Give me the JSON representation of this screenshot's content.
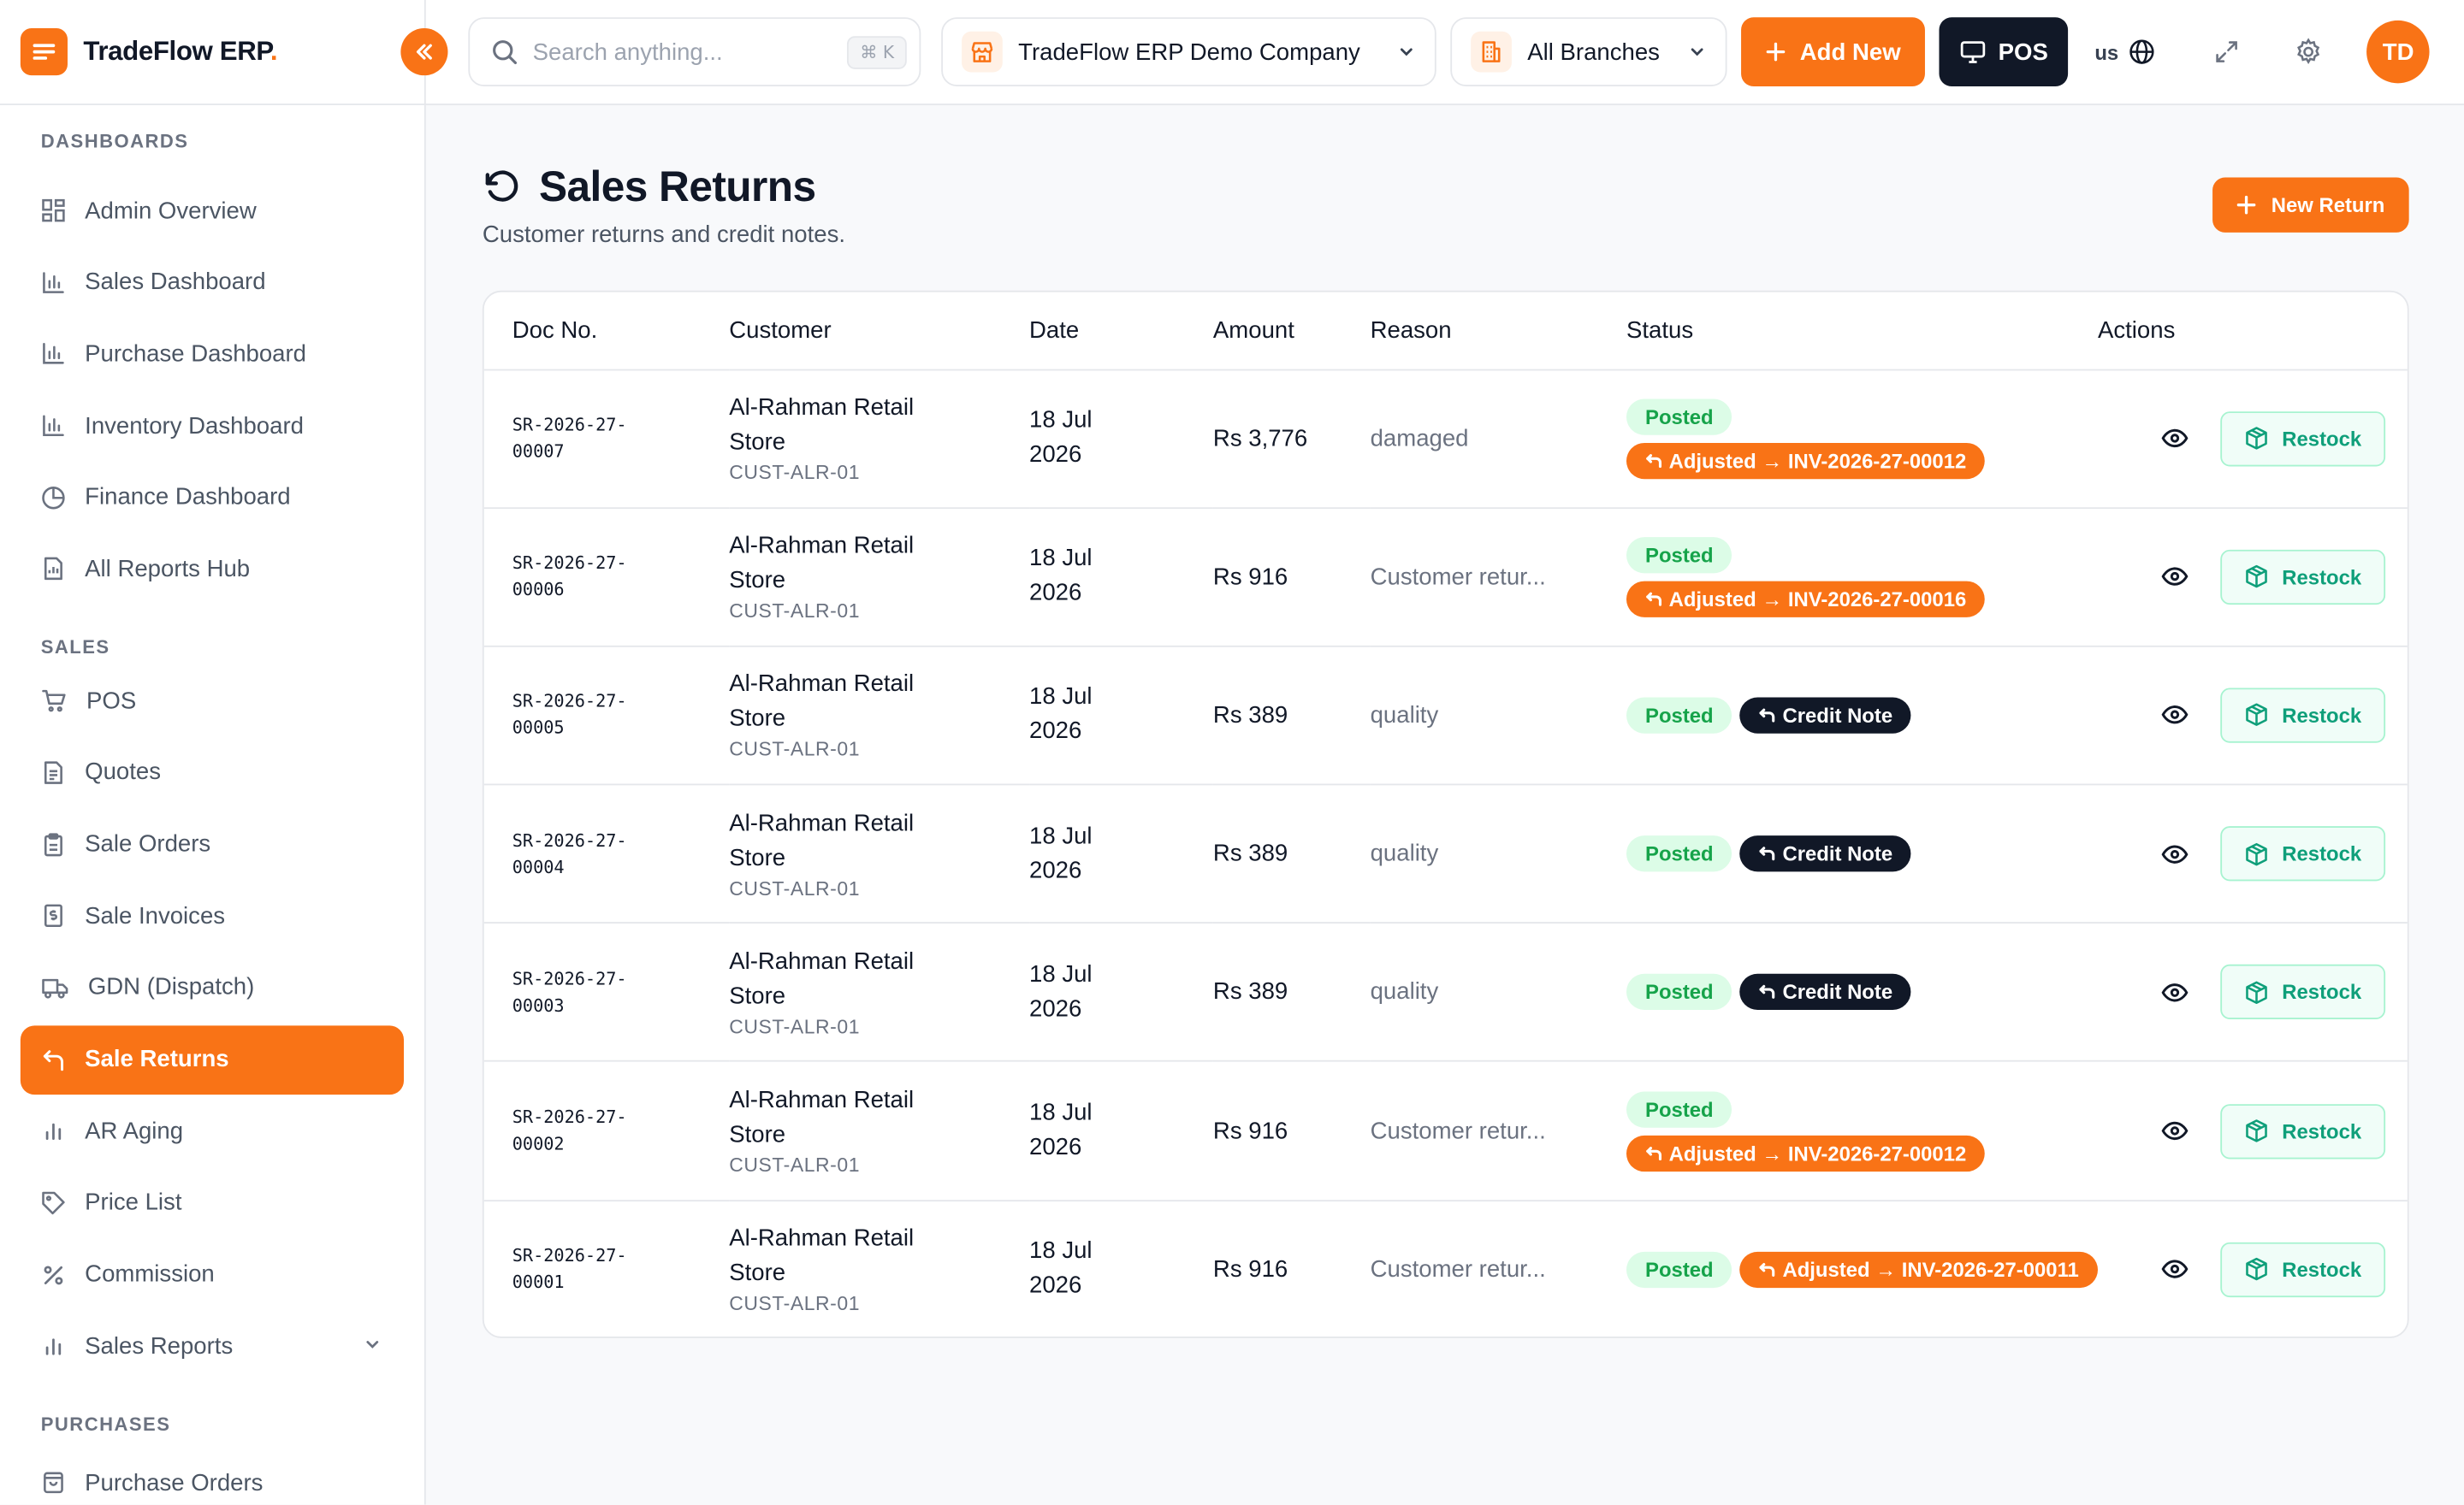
{
  "brand": {
    "name": "TradeFlow ERP",
    "dot": "."
  },
  "header": {
    "search_placeholder": "Search anything...",
    "search_shortcut": "⌘ K",
    "company": "TradeFlow ERP Demo Company",
    "branch": "All Branches",
    "add_new_label": "Add New",
    "pos_label": "POS",
    "language": "us",
    "avatar_initials": "TD"
  },
  "sidebar": {
    "sections": [
      {
        "title": "DASHBOARDS",
        "items": [
          {
            "label": "Admin Overview",
            "icon": "grid-icon"
          },
          {
            "label": "Sales Dashboard",
            "icon": "bar-chart-icon"
          },
          {
            "label": "Purchase Dashboard",
            "icon": "bar-chart-icon"
          },
          {
            "label": "Inventory Dashboard",
            "icon": "bar-chart-icon"
          },
          {
            "label": "Finance Dashboard",
            "icon": "pie-chart-icon"
          },
          {
            "label": "All Reports Hub",
            "icon": "report-icon"
          }
        ]
      },
      {
        "title": "SALES",
        "items": [
          {
            "label": "POS",
            "icon": "cart-icon"
          },
          {
            "label": "Quotes",
            "icon": "document-icon"
          },
          {
            "label": "Sale Orders",
            "icon": "clipboard-icon"
          },
          {
            "label": "Sale Invoices",
            "icon": "invoice-icon"
          },
          {
            "label": "GDN (Dispatch)",
            "icon": "truck-icon"
          },
          {
            "label": "Sale Returns",
            "icon": "return-icon",
            "active": true
          },
          {
            "label": "AR Aging",
            "icon": "bar-chart-icon"
          },
          {
            "label": "Price List",
            "icon": "tag-icon"
          },
          {
            "label": "Commission",
            "icon": "percent-icon"
          },
          {
            "label": "Sales Reports",
            "icon": "bar-chart-icon",
            "expandable": true
          }
        ]
      },
      {
        "title": "PURCHASES",
        "items": [
          {
            "label": "Purchase Orders",
            "icon": "bag-icon"
          }
        ]
      }
    ]
  },
  "page": {
    "title": "Sales Returns",
    "subtitle": "Customer returns and credit notes.",
    "new_return_label": "New Return"
  },
  "table": {
    "columns": [
      "Doc No.",
      "Customer",
      "Date",
      "Amount",
      "Reason",
      "Status",
      "Actions"
    ],
    "rows": [
      {
        "doc_no": "SR-2026-27-00007",
        "customer": "Al-Rahman Retail Store",
        "customer_code": "CUST-ALR-01",
        "date": "18 Jul 2026",
        "amount": "Rs 3,776",
        "reason": "damaged",
        "status": "Posted",
        "tag_type": "adjusted",
        "tag": "Adjusted → INV-2026-27-00012"
      },
      {
        "doc_no": "SR-2026-27-00006",
        "customer": "Al-Rahman Retail Store",
        "customer_code": "CUST-ALR-01",
        "date": "18 Jul 2026",
        "amount": "Rs 916",
        "reason": "Customer retur...",
        "status": "Posted",
        "tag_type": "adjusted",
        "tag": "Adjusted → INV-2026-27-00016"
      },
      {
        "doc_no": "SR-2026-27-00005",
        "customer": "Al-Rahman Retail Store",
        "customer_code": "CUST-ALR-01",
        "date": "18 Jul 2026",
        "amount": "Rs 389",
        "reason": "quality",
        "status": "Posted",
        "tag_type": "credit",
        "tag": "Credit Note"
      },
      {
        "doc_no": "SR-2026-27-00004",
        "customer": "Al-Rahman Retail Store",
        "customer_code": "CUST-ALR-01",
        "date": "18 Jul 2026",
        "amount": "Rs 389",
        "reason": "quality",
        "status": "Posted",
        "tag_type": "credit",
        "tag": "Credit Note"
      },
      {
        "doc_no": "SR-2026-27-00003",
        "customer": "Al-Rahman Retail Store",
        "customer_code": "CUST-ALR-01",
        "date": "18 Jul 2026",
        "amount": "Rs 389",
        "reason": "quality",
        "status": "Posted",
        "tag_type": "credit",
        "tag": "Credit Note"
      },
      {
        "doc_no": "SR-2026-27-00002",
        "customer": "Al-Rahman Retail Store",
        "customer_code": "CUST-ALR-01",
        "date": "18 Jul 2026",
        "amount": "Rs 916",
        "reason": "Customer retur...",
        "status": "Posted",
        "tag_type": "adjusted",
        "tag": "Adjusted → INV-2026-27-00012"
      },
      {
        "doc_no": "SR-2026-27-00001",
        "customer": "Al-Rahman Retail Store",
        "customer_code": "CUST-ALR-01",
        "date": "18 Jul 2026",
        "amount": "Rs 916",
        "reason": "Customer retur...",
        "status": "Posted",
        "tag_type": "adjusted",
        "tag": "Adjusted → INV-2026-27-00011"
      }
    ],
    "action_view_icon": "eye-icon",
    "restock_label": "Restock"
  },
  "colors": {
    "accent": "#f97316",
    "dark": "#111827",
    "success_bg": "#dcfce7",
    "success_text": "#16a34a",
    "restock_text": "#0f9f7a"
  }
}
